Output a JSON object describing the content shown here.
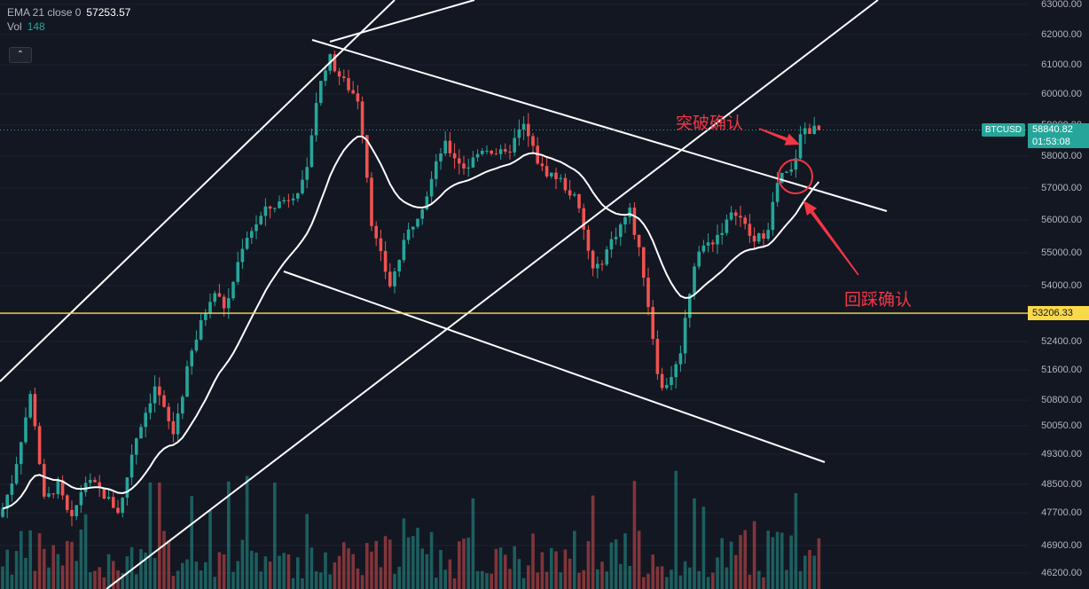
{
  "legend": {
    "ema_label": "EMA 21 close 0",
    "ema_value": "57253.57",
    "vol_label": "Vol",
    "vol_value": "148"
  },
  "controls": {
    "collapse_glyph": "⌃"
  },
  "annotations": {
    "breakout": "突破确认",
    "retest": "回踩确认"
  },
  "price_axis": {
    "ticks": [
      "63000.00",
      "62000.00",
      "61000.00",
      "60000.00",
      "59000.00",
      "58000.00",
      "57000.00",
      "56000.00",
      "55000.00",
      "54000.00",
      "53206.33",
      "52400.00",
      "51600.00",
      "50800.00",
      "50050.00",
      "49300.00",
      "48500.00",
      "47700.00",
      "46900.00",
      "46200.00"
    ],
    "tick_values": [
      63000,
      62000,
      61000,
      60000,
      59000,
      58000,
      57000,
      56000,
      55000,
      54000,
      null,
      52400,
      51600,
      50800,
      50050,
      49300,
      48500,
      47700,
      46900,
      46200
    ],
    "scale": "log"
  },
  "current_price": {
    "symbol": "BTCUSD",
    "price": "58840.82",
    "countdown": "01:53:08",
    "value": 58840.82
  },
  "horizontal_level": {
    "label": "53206.33",
    "value": 53206.33
  },
  "colors": {
    "background": "#131722",
    "up": "#26a69a",
    "down": "#ef5350",
    "ema": "#ffffff",
    "level": "#f9d949",
    "annotation": "#f23645",
    "trendline": "#ffffff"
  },
  "chart_data": {
    "type": "candlestick",
    "symbol": "BTCUSD",
    "ylim": [
      46000,
      63500
    ],
    "indicators": [
      {
        "name": "EMA 21 close 0",
        "last": 57253.57
      }
    ],
    "ohlc": []
  }
}
